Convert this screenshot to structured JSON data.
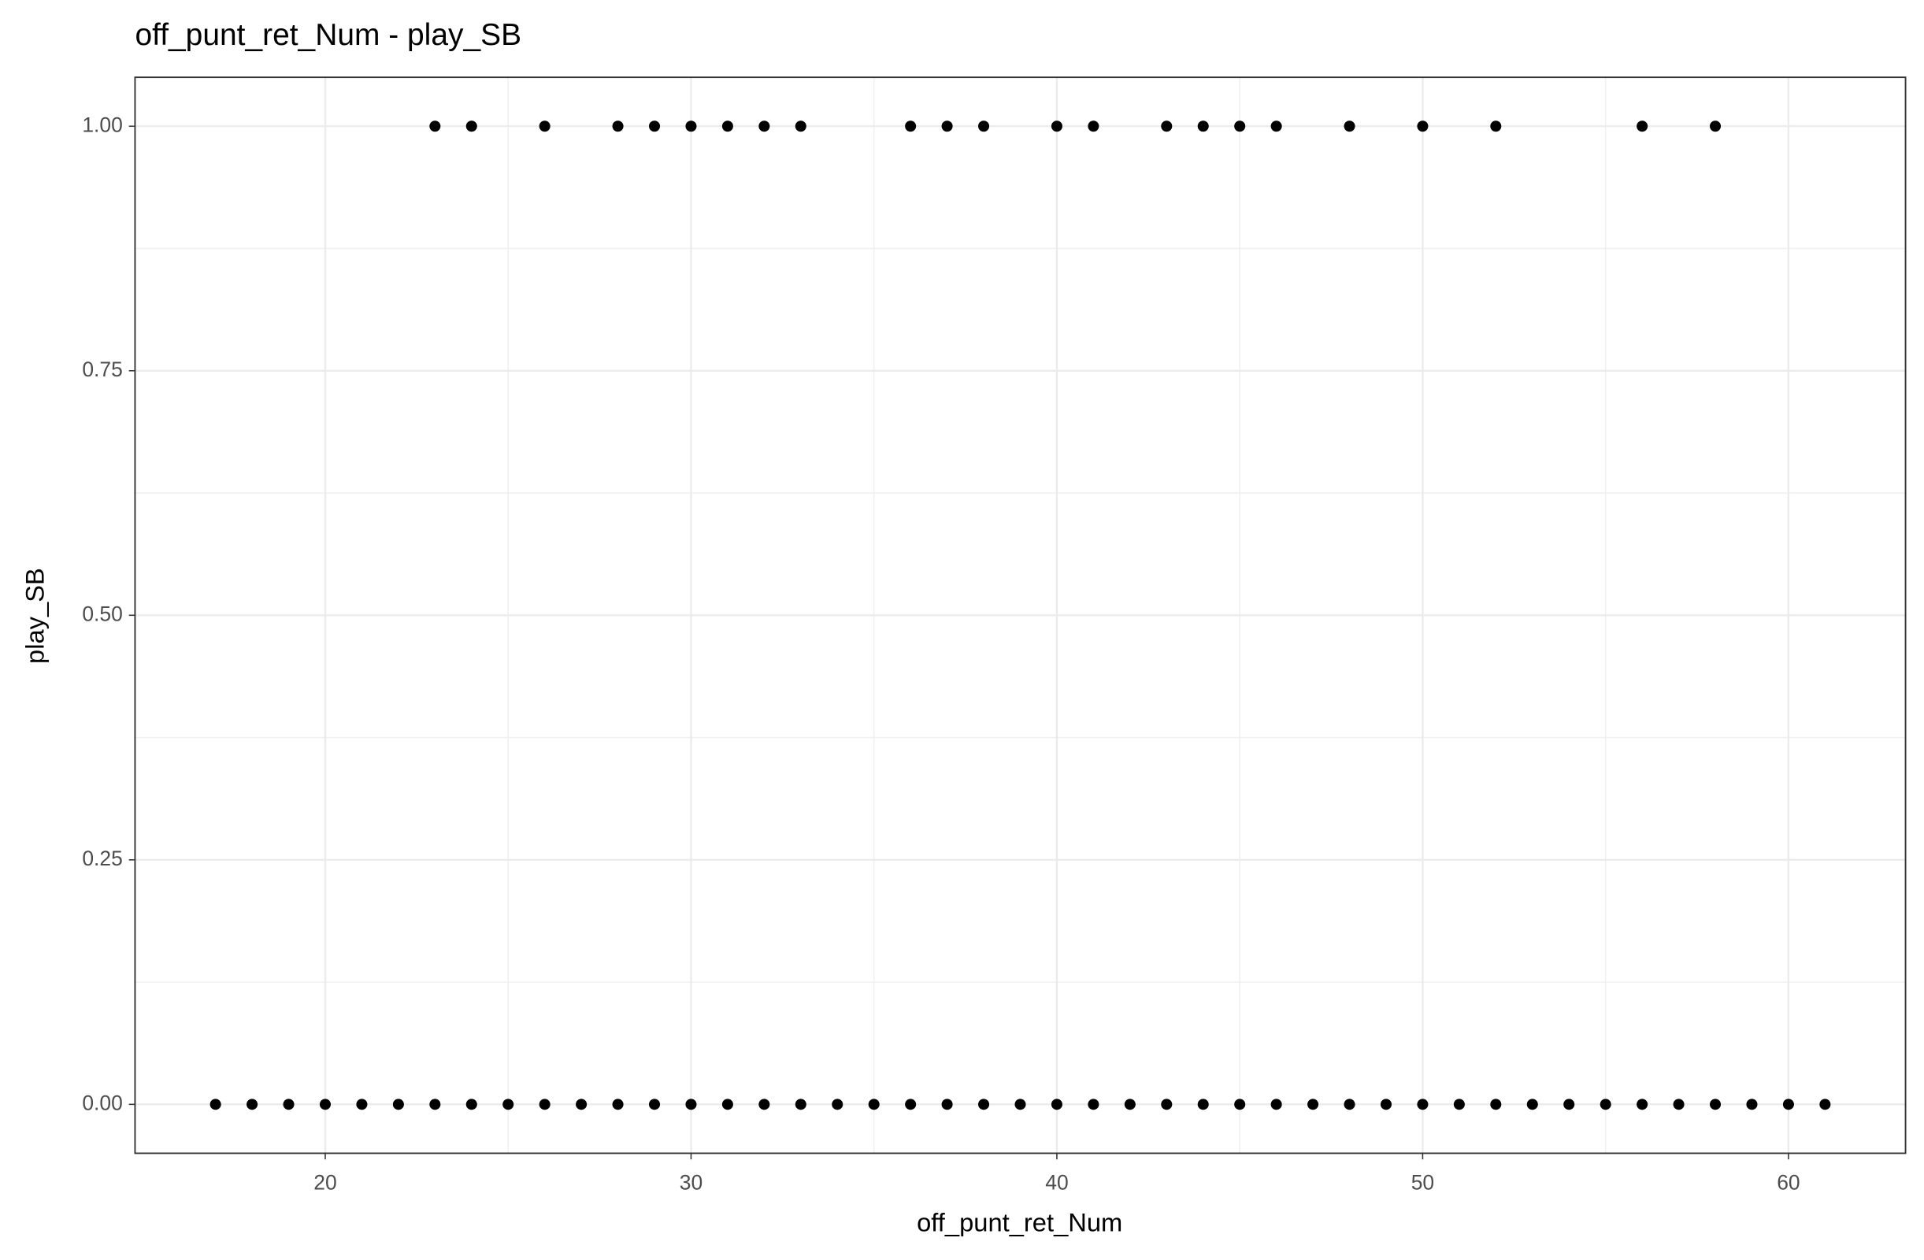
{
  "chart_data": {
    "type": "scatter",
    "title": "off_punt_ret_Num - play_SB",
    "x_label": "off_punt_ret_Num",
    "y_label": "play_SB",
    "color": "#000000",
    "grid": true,
    "x": [
      23,
      24,
      26,
      28,
      29,
      30,
      31,
      32,
      33,
      36,
      37,
      38,
      40,
      41,
      43,
      44,
      45,
      46,
      48,
      50,
      52,
      56,
      58,
      17,
      18,
      19,
      20,
      21,
      22,
      23,
      24,
      25,
      26,
      27,
      28,
      29,
      30,
      31,
      32,
      33,
      34,
      35,
      36,
      37,
      38,
      39,
      40,
      41,
      42,
      43,
      44,
      45,
      46,
      47,
      48,
      49,
      50,
      51,
      52,
      53,
      54,
      55,
      56,
      57,
      58,
      59,
      60,
      61
    ],
    "y": [
      1,
      1,
      1,
      1,
      1,
      1,
      1,
      1,
      1,
      1,
      1,
      1,
      1,
      1,
      1,
      1,
      1,
      1,
      1,
      1,
      1,
      1,
      1,
      0,
      0,
      0,
      0,
      0,
      0,
      0,
      0,
      0,
      0,
      0,
      0,
      0,
      0,
      0,
      0,
      0,
      0,
      0,
      0,
      0,
      0,
      0,
      0,
      0,
      0,
      0,
      0,
      0,
      0,
      0,
      0,
      0,
      0,
      0,
      0,
      0,
      0,
      0,
      0,
      0,
      0,
      0,
      0,
      0
    ],
    "xlim": [
      14.8,
      63.2
    ],
    "ylim": [
      -0.05,
      1.05
    ],
    "xticks": [
      20,
      30,
      40,
      50,
      60
    ],
    "yticks": [
      {
        "value": 0,
        "label": "0.00"
      },
      {
        "value": 0.25,
        "label": "0.25"
      },
      {
        "value": 0.5,
        "label": "0.50"
      },
      {
        "value": 0.75,
        "label": "0.75"
      },
      {
        "value": 1,
        "label": "1.00"
      }
    ]
  }
}
